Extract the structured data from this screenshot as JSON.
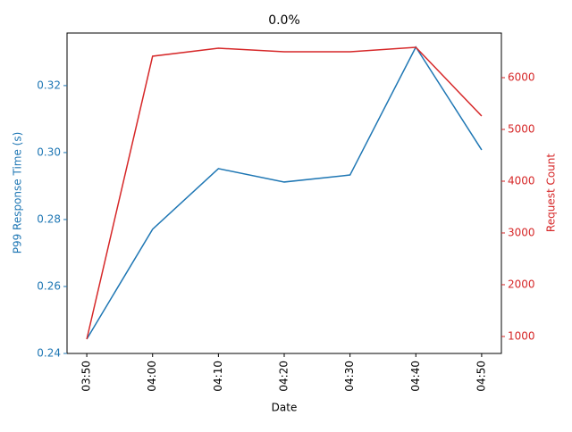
{
  "chart_data": {
    "type": "line",
    "title": "0.0%",
    "x_label": "Date",
    "y_label": "P99 Response Time (s)",
    "y2_label": "Request Count",
    "categories": [
      "03:50",
      "04:00",
      "04:10",
      "04:20",
      "04:30",
      "04:40",
      "04:50"
    ],
    "series": [
      {
        "name": "P99 Response Time (s)",
        "color": "#1f77b4",
        "values": [
          0.2443,
          0.2771,
          0.2952,
          0.2912,
          0.2933,
          0.3315,
          0.3008
        ]
      },
      {
        "name": "Request Count",
        "color": "#d62728",
        "axis": "y2",
        "values": [
          948,
          6414,
          6569,
          6500,
          6500,
          6586,
          5259
        ]
      }
    ],
    "ylim": [
      0.24,
      0.3357
    ],
    "yticks": [
      0.24,
      0.26,
      0.28,
      {
        "value": 0.3,
        "label": "0.30"
      },
      0.32
    ],
    "y2lim": [
      672,
      6862
    ],
    "y2ticks": [
      1000,
      2000,
      3000,
      4000,
      5000,
      6000
    ]
  }
}
